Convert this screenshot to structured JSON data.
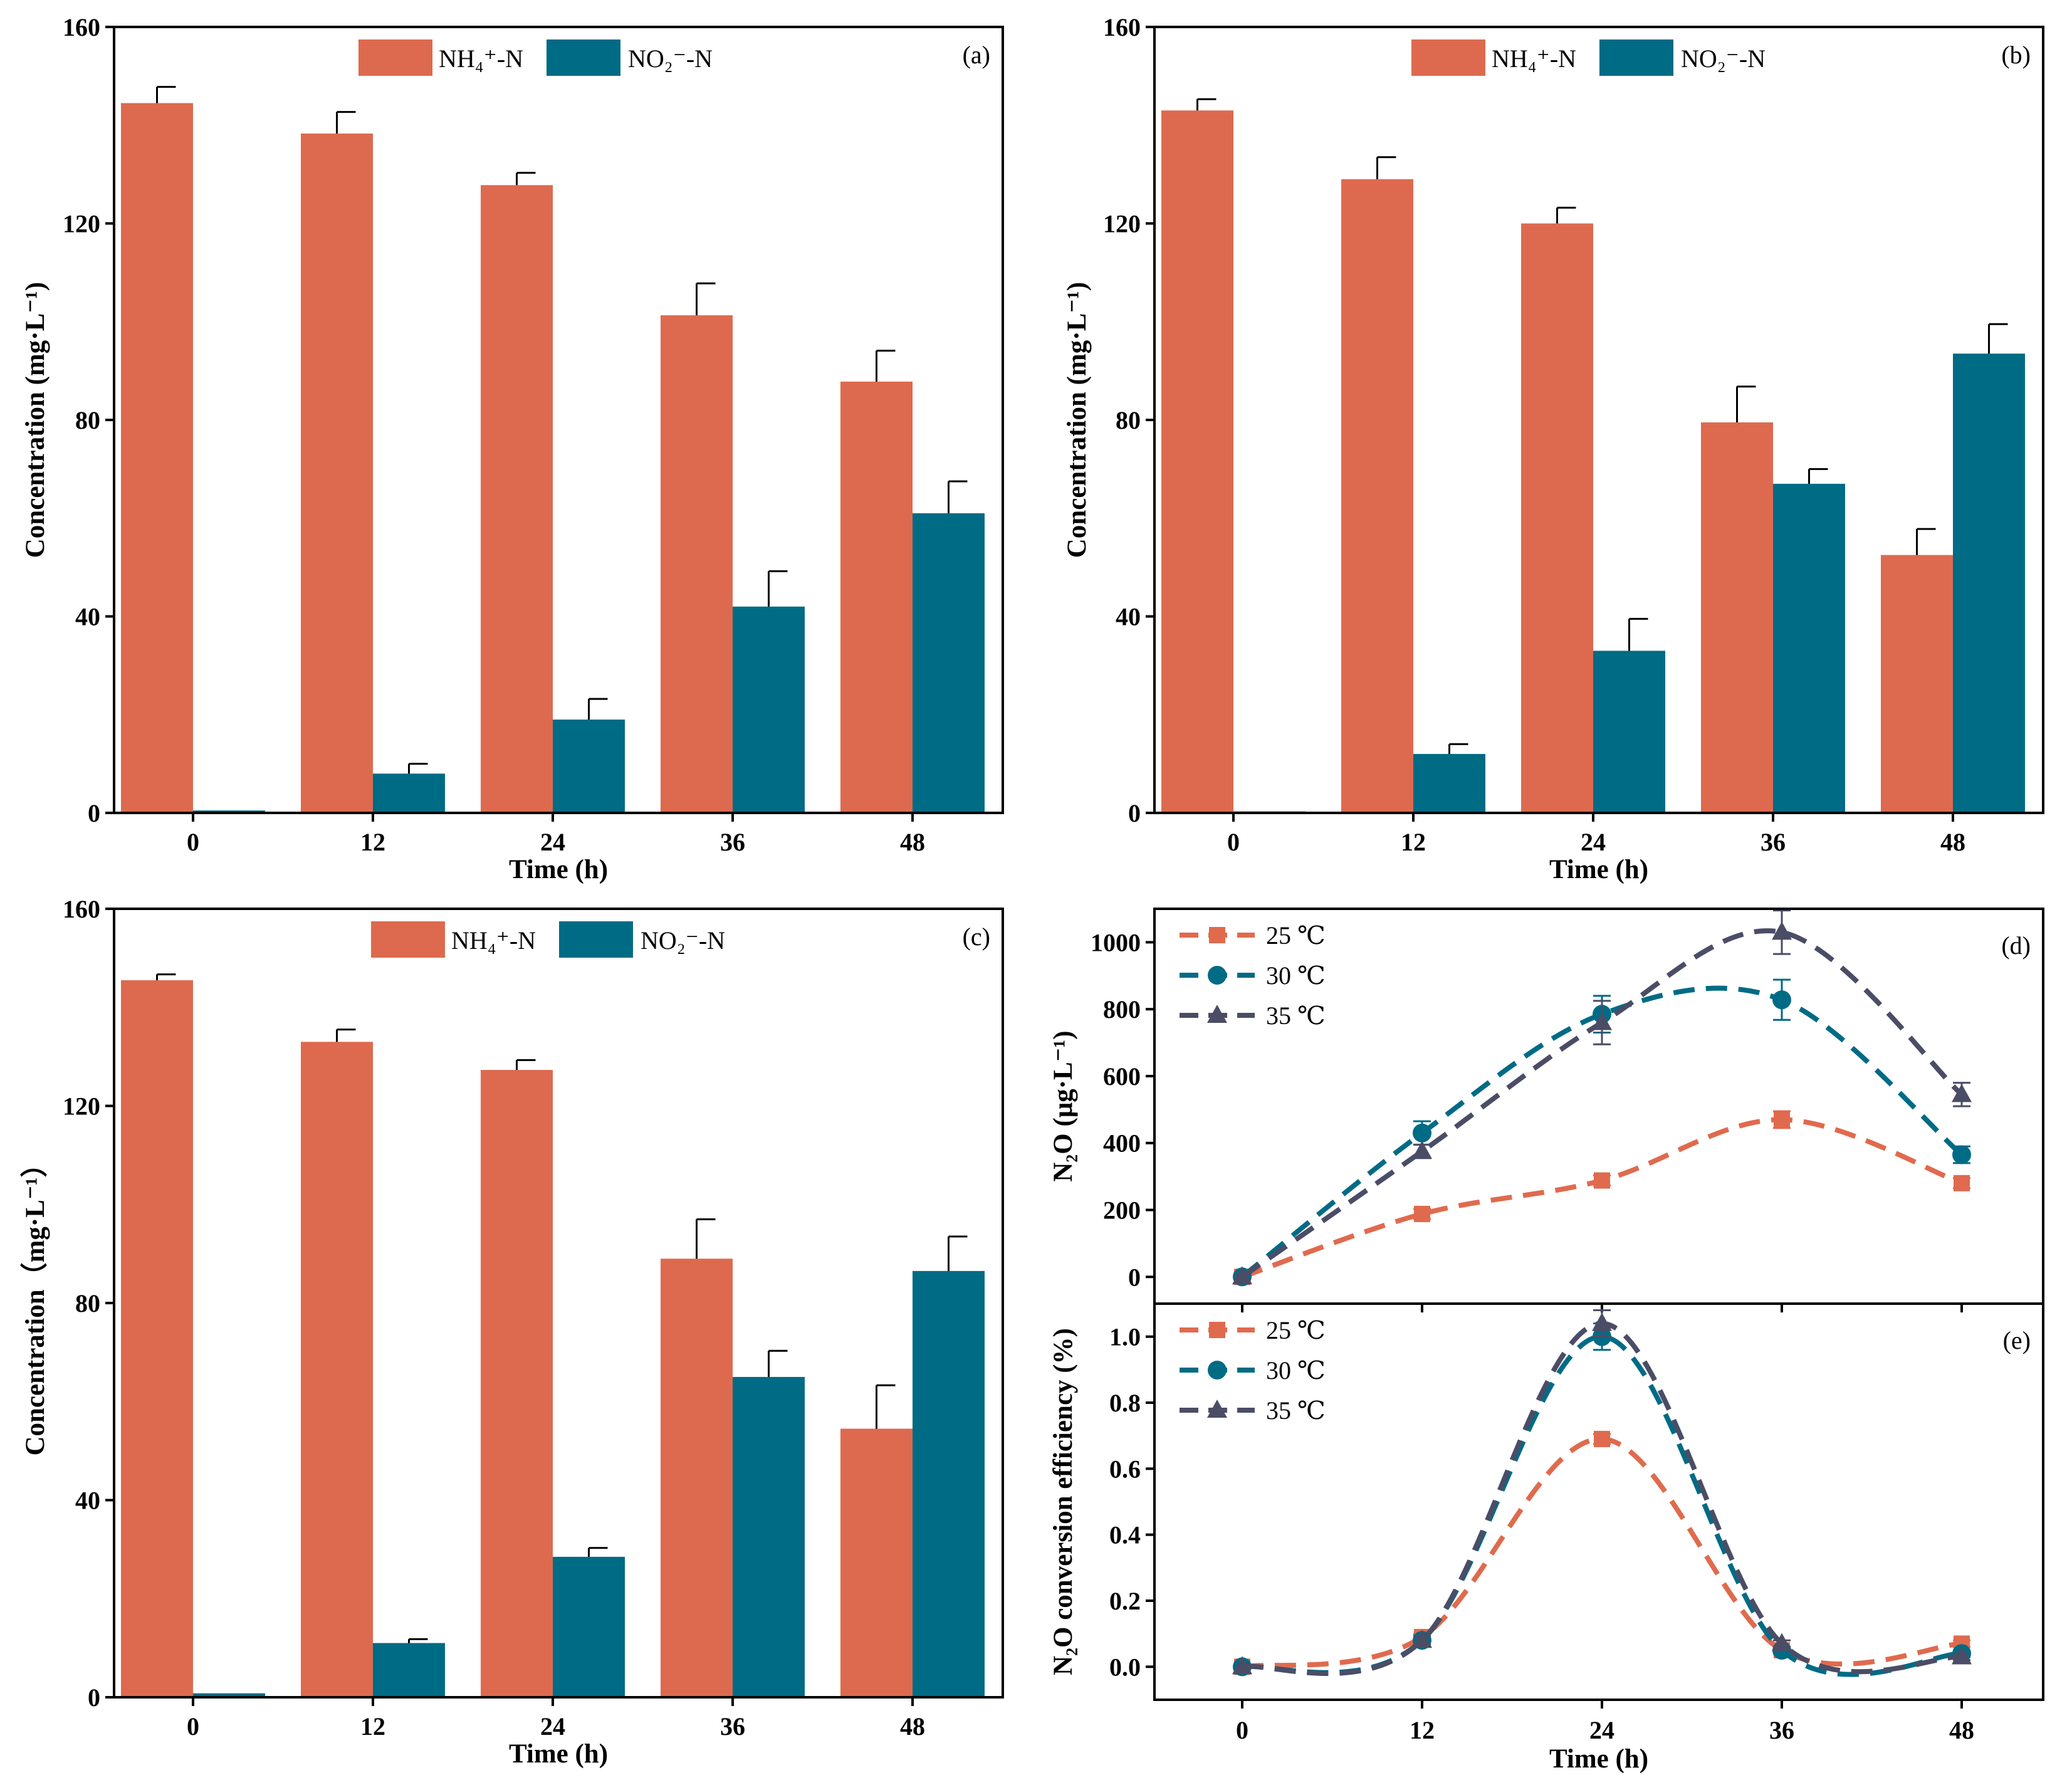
{
  "colors": {
    "nh4": "#DD6A4E",
    "no2": "#006B85",
    "t25": "#E06A4E",
    "t30": "#006B85",
    "t35": "#4B4D66",
    "axis": "#000000"
  },
  "chart_data": [
    {
      "id": "a",
      "type": "bar",
      "panel_label": "(a)",
      "categories": [
        "0",
        "12",
        "24",
        "36",
        "48"
      ],
      "xlabel": "Time (h)",
      "ylabel": "Concentration (mg·L⁻¹)",
      "ylim": [
        0,
        160
      ],
      "yticks": [
        "0",
        "40",
        "80",
        "120",
        "160"
      ],
      "legend_position": "top-center",
      "series": [
        {
          "name": "NH₄⁺-N",
          "color_key": "nh4",
          "values": [
            144.5,
            138.3,
            127.8,
            101.3,
            87.8
          ],
          "errors": [
            3.3,
            4.4,
            2.5,
            6.5,
            6.3
          ]
        },
        {
          "name": "NO₂⁻-N",
          "color_key": "no2",
          "values": [
            0.5,
            8.0,
            19.0,
            42.0,
            61.0
          ],
          "errors": [
            0,
            2.0,
            4.2,
            7.2,
            6.5
          ]
        }
      ]
    },
    {
      "id": "b",
      "type": "bar",
      "panel_label": "(b)",
      "categories": [
        "0",
        "12",
        "24",
        "36",
        "48"
      ],
      "xlabel": "Time (h)",
      "ylabel": "Concentration (mg·L⁻¹)",
      "ylim": [
        0,
        160
      ],
      "yticks": [
        "0",
        "40",
        "80",
        "120",
        "160"
      ],
      "legend_position": "top-center",
      "series": [
        {
          "name": "NH₄⁺-N",
          "color_key": "nh4",
          "values": [
            143.0,
            129.0,
            120.0,
            79.5,
            52.5
          ],
          "errors": [
            2.3,
            4.5,
            3.2,
            7.3,
            5.3
          ]
        },
        {
          "name": "NO₂⁻-N",
          "color_key": "no2",
          "values": [
            0.3,
            12.0,
            33.0,
            67.0,
            93.5
          ],
          "errors": [
            0,
            2.0,
            6.5,
            3.0,
            6.0
          ]
        }
      ]
    },
    {
      "id": "c",
      "type": "bar",
      "panel_label": "(c)",
      "categories": [
        "0",
        "12",
        "24",
        "36",
        "48"
      ],
      "xlabel": "Time (h)",
      "ylabel": "Concentration（mg·L⁻¹）",
      "ylim": [
        0,
        160
      ],
      "yticks": [
        "0",
        "40",
        "80",
        "120",
        "160"
      ],
      "legend_position": "top-center",
      "series": [
        {
          "name": "NH₄⁺-N",
          "color_key": "nh4",
          "values": [
            145.5,
            133.0,
            127.3,
            89.0,
            54.5
          ],
          "errors": [
            1.2,
            2.5,
            2.0,
            8.0,
            8.8
          ]
        },
        {
          "name": "NO₂⁻-N",
          "color_key": "no2",
          "values": [
            0.8,
            11.0,
            28.5,
            65.0,
            86.5
          ],
          "errors": [
            0,
            0.8,
            1.8,
            5.3,
            7.0
          ]
        }
      ]
    },
    {
      "id": "d",
      "type": "line",
      "panel_label": "(d)",
      "x": [
        0,
        12,
        24,
        36,
        48
      ],
      "xticks": [
        "0",
        "12",
        "24",
        "36",
        "48"
      ],
      "xlabel": "",
      "ylabel": "N₂O (μg·L⁻¹)",
      "ylim": [
        -80,
        1100
      ],
      "yticks": [
        "0",
        "200",
        "400",
        "600",
        "800",
        "1000"
      ],
      "legend_position": "top-left",
      "series": [
        {
          "name": "25 ℃",
          "color_key": "t25",
          "marker": "square",
          "values": [
            0,
            188,
            288,
            470,
            280
          ],
          "errors": [
            8,
            15,
            15,
            25,
            15
          ]
        },
        {
          "name": "30 ℃",
          "color_key": "t30",
          "marker": "circle",
          "values": [
            0,
            430,
            785,
            828,
            365
          ],
          "errors": [
            8,
            35,
            55,
            60,
            25
          ]
        },
        {
          "name": "35 ℃",
          "color_key": "t35",
          "marker": "triangle",
          "values": [
            0,
            375,
            760,
            1030,
            545
          ],
          "errors": [
            8,
            20,
            65,
            65,
            35
          ]
        }
      ]
    },
    {
      "id": "e",
      "type": "line",
      "panel_label": "(e)",
      "x": [
        0,
        12,
        24,
        36,
        48
      ],
      "xticks": [
        "0",
        "12",
        "24",
        "36",
        "48"
      ],
      "xlabel": "Time (h)",
      "ylabel": "N₂O conversion efficiency (%)",
      "ylim": [
        -0.1,
        1.1
      ],
      "yticks": [
        "0.0",
        "0.2",
        "0.4",
        "0.6",
        "0.8",
        "1.0"
      ],
      "legend_position": "top-left",
      "series": [
        {
          "name": "25 ℃",
          "color_key": "t25",
          "marker": "square",
          "values": [
            0.0,
            0.09,
            0.69,
            0.05,
            0.07
          ],
          "errors": [
            0.005,
            0.01,
            0.015,
            0.01,
            0.01
          ]
        },
        {
          "name": "30 ℃",
          "color_key": "t30",
          "marker": "circle",
          "values": [
            0.0,
            0.08,
            1.0,
            0.05,
            0.04
          ],
          "errors": [
            0.005,
            0.015,
            0.04,
            0.01,
            0.01
          ]
        },
        {
          "name": "35 ℃",
          "color_key": "t35",
          "marker": "triangle",
          "values": [
            0.0,
            0.08,
            1.04,
            0.07,
            0.03
          ],
          "errors": [
            0.005,
            0.01,
            0.04,
            0.01,
            0.01
          ]
        }
      ]
    }
  ]
}
